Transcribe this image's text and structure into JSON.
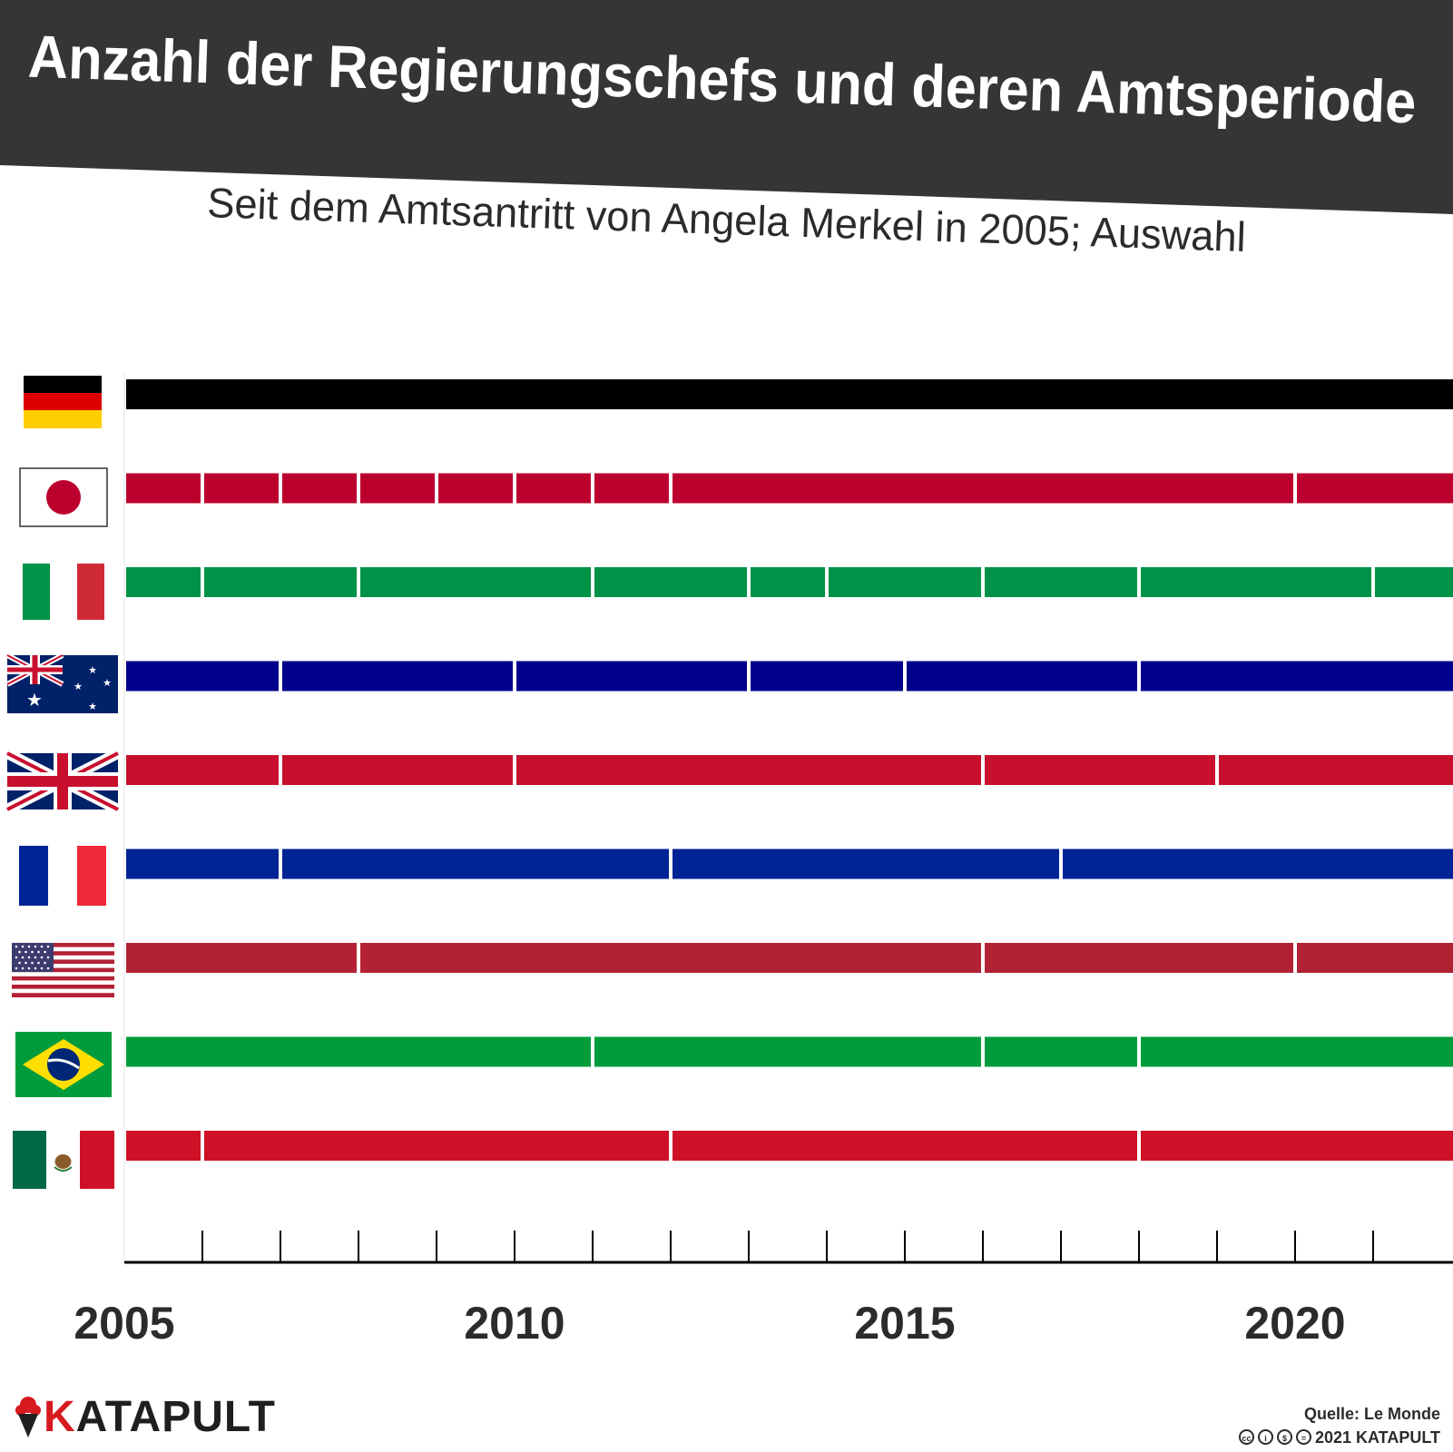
{
  "header": {
    "title": "Anzahl der Regierungschefs und deren Amtsperiode",
    "subtitle": "Seit dem Amtsantritt von Angela Merkel in 2005; Auswahl"
  },
  "footer": {
    "brand": "KATAPULT",
    "brand_first": "K",
    "brand_rest": "ATAPULT",
    "source": "Quelle: Le Monde",
    "copyright": "2021 KATAPULT",
    "license_icons": [
      "cc-icon",
      "by-icon",
      "nc-icon",
      "nd-icon"
    ]
  },
  "colors": {
    "header_bg": "#353535",
    "axis": "#000000"
  },
  "chart_data": {
    "type": "timeline",
    "title": "Anzahl der Regierungschefs und deren Amtsperiode",
    "subtitle": "Seit dem Amtsantritt von Angela Merkel in 2005; Auswahl",
    "x_range": [
      2005,
      2021.75
    ],
    "ticks": [
      2006,
      2007,
      2008,
      2009,
      2010,
      2011,
      2012,
      2013,
      2014,
      2015,
      2016,
      2017,
      2018,
      2019,
      2020,
      2021
    ],
    "tick_labels": [
      "2005",
      "2010",
      "2015",
      "2020"
    ],
    "tick_label_values": [
      2005,
      2010,
      2015,
      2020
    ],
    "series": [
      {
        "name": "Deutschland",
        "flag": "germany-flag",
        "color": "#000000",
        "terms": [
          [
            2005,
            2021.75
          ]
        ]
      },
      {
        "name": "Japan",
        "flag": "japan-flag",
        "color": "#bc002d",
        "terms": [
          [
            2005,
            2006
          ],
          [
            2006,
            2007
          ],
          [
            2007,
            2008
          ],
          [
            2008,
            2009
          ],
          [
            2009,
            2010
          ],
          [
            2010,
            2011
          ],
          [
            2011,
            2012
          ],
          [
            2012,
            2020
          ],
          [
            2020,
            2021.75
          ]
        ]
      },
      {
        "name": "Italien",
        "flag": "italy-flag",
        "color": "#009246",
        "terms": [
          [
            2005,
            2006
          ],
          [
            2006,
            2008
          ],
          [
            2008,
            2011
          ],
          [
            2011,
            2013
          ],
          [
            2013,
            2014
          ],
          [
            2014,
            2016
          ],
          [
            2016,
            2018
          ],
          [
            2018,
            2021
          ],
          [
            2021,
            2021.75
          ]
        ]
      },
      {
        "name": "Australien",
        "flag": "australia-flag",
        "color": "#00008b",
        "terms": [
          [
            2005,
            2007
          ],
          [
            2007,
            2010
          ],
          [
            2010,
            2013
          ],
          [
            2013,
            2015
          ],
          [
            2015,
            2018
          ],
          [
            2018,
            2021.75
          ]
        ]
      },
      {
        "name": "Vereinigtes Königreich",
        "flag": "uk-flag",
        "color": "#c8102e",
        "terms": [
          [
            2005,
            2007
          ],
          [
            2007,
            2010
          ],
          [
            2010,
            2016
          ],
          [
            2016,
            2019
          ],
          [
            2019,
            2021.75
          ]
        ]
      },
      {
        "name": "Frankreich",
        "flag": "france-flag",
        "color": "#002395",
        "terms": [
          [
            2005,
            2007
          ],
          [
            2007,
            2012
          ],
          [
            2012,
            2017
          ],
          [
            2017,
            2021.75
          ]
        ]
      },
      {
        "name": "USA",
        "flag": "usa-flag",
        "color": "#b22234",
        "terms": [
          [
            2005,
            2008
          ],
          [
            2008,
            2016
          ],
          [
            2016,
            2020
          ],
          [
            2020,
            2021.75
          ]
        ]
      },
      {
        "name": "Brasilien",
        "flag": "brazil-flag",
        "color": "#009c3b",
        "terms": [
          [
            2005,
            2011
          ],
          [
            2011,
            2016
          ],
          [
            2016,
            2018
          ],
          [
            2018,
            2021.75
          ]
        ]
      },
      {
        "name": "Mexiko",
        "flag": "mexico-flag",
        "color": "#ce1126",
        "terms": [
          [
            2005,
            2006
          ],
          [
            2006,
            2012
          ],
          [
            2012,
            2018
          ],
          [
            2018,
            2021.75
          ]
        ]
      }
    ]
  }
}
